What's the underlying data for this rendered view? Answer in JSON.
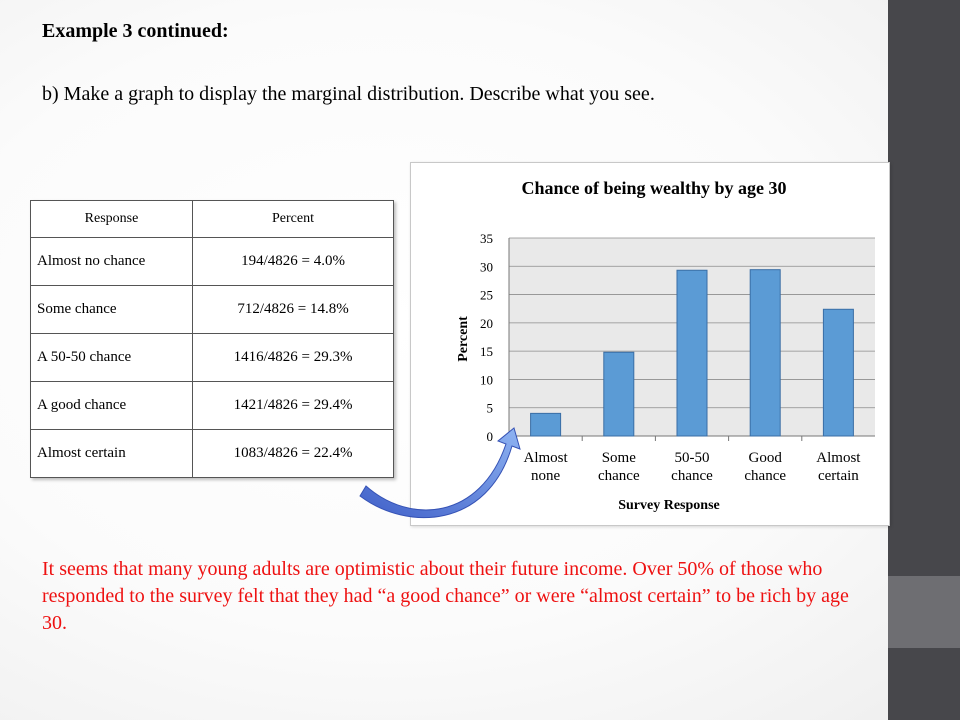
{
  "slide": {
    "heading": "Example 3 continued:",
    "question": "b) Make a graph to display the marginal distribution. Describe what you see.",
    "conclusion": "It seems that many young adults are optimistic about their future income. Over 50% of those who responded to the survey felt that they had “a good chance” or were “almost certain” to be rich by age 30."
  },
  "table": {
    "headers": [
      "Response",
      "Percent"
    ],
    "rows": [
      {
        "response": "Almost no chance",
        "percent": "194/4826 = 4.0%"
      },
      {
        "response": "Some chance",
        "percent": "712/4826 = 14.8%"
      },
      {
        "response": "A 50-50 chance",
        "percent": "1416/4826 = 29.3%"
      },
      {
        "response": "A good chance",
        "percent": "1421/4826 = 29.4%"
      },
      {
        "response": "Almost certain",
        "percent": "1083/4826 = 22.4%"
      }
    ]
  },
  "chart_data": {
    "type": "bar",
    "title": "Chance of being wealthy by age 30",
    "xlabel": "Survey Response",
    "ylabel": "Percent",
    "categories": [
      [
        "Almost",
        "none"
      ],
      [
        "Some",
        "chance"
      ],
      [
        "50-50",
        "chance"
      ],
      [
        "Good",
        "chance"
      ],
      [
        "Almost",
        "certain"
      ]
    ],
    "values": [
      4.0,
      14.8,
      29.3,
      29.4,
      22.4
    ],
    "ylim": [
      0,
      35
    ],
    "yticks": [
      0,
      5,
      10,
      15,
      20,
      25,
      30,
      35
    ],
    "grid": true,
    "legend": "none",
    "bar_color": "#5b9bd5",
    "plot_bg": "#e9e9e9"
  },
  "colors": {
    "conclusion_text": "#ee1111",
    "sidebar": "#47474b",
    "arrow": "#4f7bd9"
  }
}
